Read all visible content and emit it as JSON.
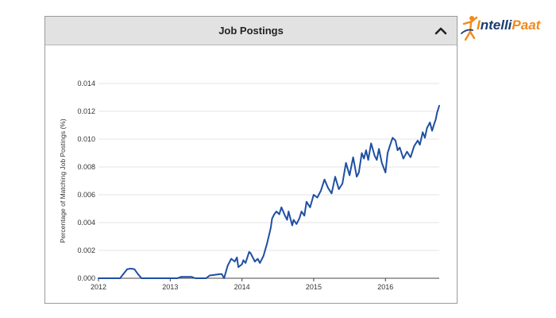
{
  "panel": {
    "title": "Job Postings"
  },
  "logo": {
    "text_main": "ntelli",
    "text_accent": "Paat",
    "text_first": "I"
  },
  "colors": {
    "line": "#1f4fa3",
    "grid": "#e3e3e3",
    "header_bg": "#e2e2e2",
    "logo_blue": "#1a3c6e",
    "logo_orange": "#f08a1c"
  },
  "chart_data": {
    "type": "line",
    "title": "Job Postings",
    "xlabel": "",
    "ylabel": "Percentage of Matching Job Postings (%)",
    "xlim": [
      2012,
      2016.75
    ],
    "ylim": [
      0,
      0.014
    ],
    "x_ticks": [
      2012,
      2013,
      2014,
      2015,
      2016
    ],
    "x_tick_labels": [
      "2012",
      "2013",
      "2014",
      "2015",
      "2016"
    ],
    "y_ticks": [
      0,
      0.002,
      0.004,
      0.006,
      0.008,
      0.01,
      0.012,
      0.014
    ],
    "y_tick_labels": [
      "0.000",
      "0.002",
      "0.004",
      "0.006",
      "0.008",
      "0.010",
      "0.012",
      "0.014"
    ],
    "grid": "horizontal",
    "series": [
      {
        "x": [
          2012.0,
          2012.3,
          2012.4,
          2012.45,
          2012.5,
          2012.55,
          2012.6,
          2012.65,
          2013.1,
          2013.15,
          2013.3,
          2013.35,
          2013.5,
          2013.55,
          2013.7,
          2013.72,
          2013.75,
          2013.8,
          2013.85,
          2013.9,
          2013.93,
          2013.95,
          2014.0,
          2014.02,
          2014.05,
          2014.1,
          2014.12,
          2014.18,
          2014.22,
          2014.25,
          2014.3,
          2014.35,
          2014.4,
          2014.42,
          2014.45,
          2014.48,
          2014.52,
          2014.55,
          2014.6,
          2014.63,
          2014.65,
          2014.7,
          2014.72,
          2014.76,
          2014.8,
          2014.83,
          2014.87,
          2014.9,
          2014.95,
          2015.0,
          2015.05,
          2015.1,
          2015.15,
          2015.2,
          2015.25,
          2015.3,
          2015.35,
          2015.4,
          2015.45,
          2015.5,
          2015.55,
          2015.6,
          2015.63,
          2015.67,
          2015.7,
          2015.73,
          2015.76,
          2015.8,
          2015.85,
          2015.88,
          2015.91,
          2015.95,
          2016.0,
          2016.03,
          2016.06,
          2016.1,
          2016.14,
          2016.17,
          2016.2,
          2016.25,
          2016.3,
          2016.35,
          2016.4,
          2016.45,
          2016.48,
          2016.52,
          2016.55,
          2016.58,
          2016.62,
          2016.65,
          2016.68,
          2016.7,
          2016.72,
          2016.75
        ],
        "y": [
          0.0,
          0.0,
          0.00065,
          0.0007,
          0.00065,
          0.0003,
          0.0,
          0.0,
          0.0,
          0.0001,
          0.0001,
          0.0,
          0.0,
          0.0002,
          0.0003,
          0.0003,
          0.0,
          0.0009,
          0.0014,
          0.0012,
          0.0015,
          0.0008,
          0.001,
          0.0013,
          0.0011,
          0.0019,
          0.0018,
          0.0012,
          0.0014,
          0.0011,
          0.0016,
          0.0025,
          0.0036,
          0.0043,
          0.0046,
          0.0048,
          0.0046,
          0.0051,
          0.0045,
          0.0042,
          0.0048,
          0.0038,
          0.0042,
          0.0039,
          0.0043,
          0.0048,
          0.0045,
          0.0055,
          0.0051,
          0.006,
          0.0058,
          0.0063,
          0.0071,
          0.0065,
          0.0061,
          0.0073,
          0.0064,
          0.0068,
          0.0083,
          0.0074,
          0.0087,
          0.0073,
          0.0076,
          0.009,
          0.0086,
          0.0092,
          0.0085,
          0.0097,
          0.0088,
          0.0085,
          0.0093,
          0.0083,
          0.0076,
          0.009,
          0.0095,
          0.0101,
          0.0099,
          0.0092,
          0.0094,
          0.0086,
          0.0091,
          0.0087,
          0.0095,
          0.0099,
          0.0096,
          0.0105,
          0.0101,
          0.0108,
          0.0112,
          0.0106,
          0.0111,
          0.0114,
          0.0119,
          0.0124
        ]
      }
    ]
  }
}
